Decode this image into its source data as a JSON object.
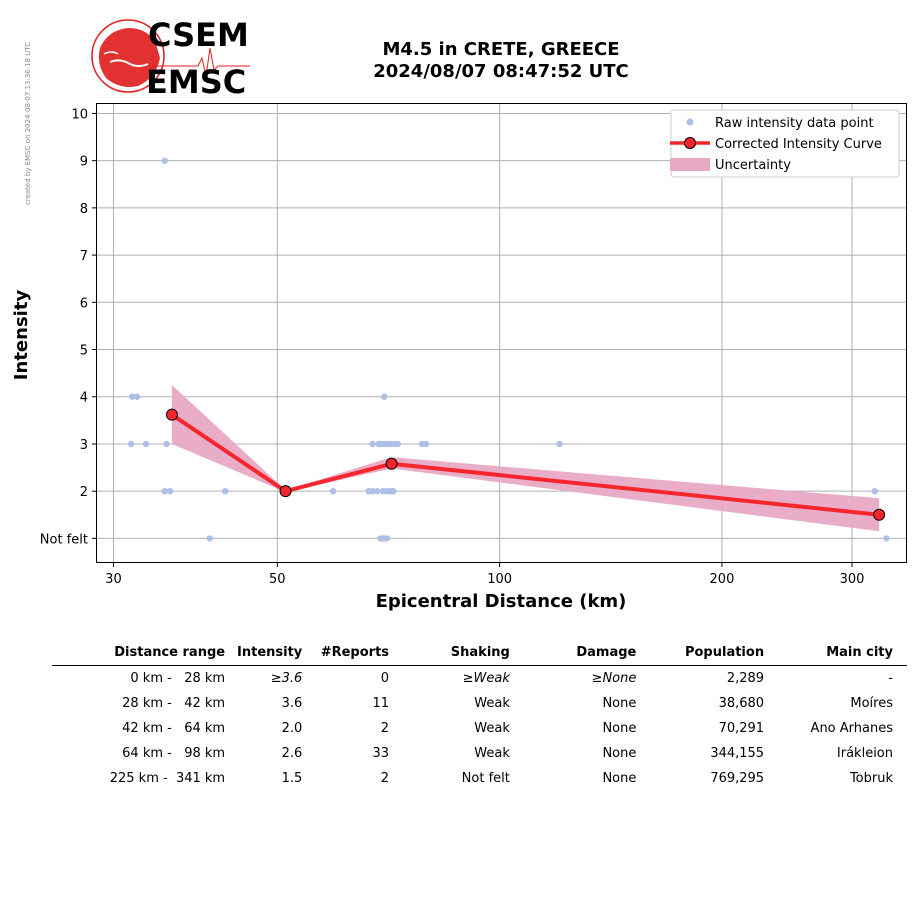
{
  "watermark": "created by EMSC on 2024-08-07 13:36:18 UTC",
  "logo": {
    "line1": "CSEM",
    "line2": "EMSC",
    "color": "#e02020"
  },
  "title": {
    "line1": "M4.5 in CRETE, GREECE",
    "line2": "2024/08/07 08:47:52 UTC"
  },
  "chart_data": {
    "type": "scatter",
    "xlabel": "Epicentral Distance (km)",
    "ylabel": "Intensity",
    "xscale": "log",
    "xlim": [
      28.5,
      355
    ],
    "ylim": [
      0.5,
      10.2
    ],
    "xticks": [
      30,
      50,
      100,
      200,
      300
    ],
    "yticks": [
      {
        "value": 1,
        "label": "Not felt"
      },
      {
        "value": 2,
        "label": "2"
      },
      {
        "value": 3,
        "label": "3"
      },
      {
        "value": 4,
        "label": "4"
      },
      {
        "value": 5,
        "label": "5"
      },
      {
        "value": 6,
        "label": "6"
      },
      {
        "value": 7,
        "label": "7"
      },
      {
        "value": 8,
        "label": "8"
      },
      {
        "value": 9,
        "label": "9"
      },
      {
        "value": 10,
        "label": "10"
      }
    ],
    "grid": true,
    "legend_position": "top-right",
    "legend": [
      "Raw intensity data point",
      "Corrected Intensity Curve",
      "Uncertainty"
    ],
    "colors": {
      "raw": "#aebfe8",
      "curve": "#f5262e",
      "band": "#e8a9c4",
      "marker": "#f5262e"
    },
    "raw_points": [
      {
        "x": 35.2,
        "y": 9
      },
      {
        "x": 31.8,
        "y": 4
      },
      {
        "x": 32.3,
        "y": 4
      },
      {
        "x": 31.7,
        "y": 3
      },
      {
        "x": 33.2,
        "y": 3
      },
      {
        "x": 35.4,
        "y": 3
      },
      {
        "x": 35.2,
        "y": 2
      },
      {
        "x": 35.8,
        "y": 2
      },
      {
        "x": 42.5,
        "y": 2
      },
      {
        "x": 40.5,
        "y": 1
      },
      {
        "x": 59.5,
        "y": 2
      },
      {
        "x": 66.5,
        "y": 2
      },
      {
        "x": 67.3,
        "y": 2
      },
      {
        "x": 68.3,
        "y": 2
      },
      {
        "x": 69.5,
        "y": 2
      },
      {
        "x": 70.2,
        "y": 2
      },
      {
        "x": 70.8,
        "y": 2
      },
      {
        "x": 71.3,
        "y": 2
      },
      {
        "x": 71.8,
        "y": 2
      },
      {
        "x": 67.3,
        "y": 3
      },
      {
        "x": 68.6,
        "y": 3
      },
      {
        "x": 69.2,
        "y": 3
      },
      {
        "x": 69.9,
        "y": 3
      },
      {
        "x": 70.5,
        "y": 3
      },
      {
        "x": 71.2,
        "y": 3
      },
      {
        "x": 72.0,
        "y": 3
      },
      {
        "x": 72.8,
        "y": 3
      },
      {
        "x": 69.8,
        "y": 4
      },
      {
        "x": 69.0,
        "y": 1
      },
      {
        "x": 69.7,
        "y": 1
      },
      {
        "x": 70.4,
        "y": 1
      },
      {
        "x": 78.5,
        "y": 3
      },
      {
        "x": 79.5,
        "y": 3
      },
      {
        "x": 120.5,
        "y": 3
      },
      {
        "x": 322,
        "y": 2
      },
      {
        "x": 334,
        "y": 1
      }
    ],
    "curve": [
      {
        "x": 36.0,
        "y": 3.62
      },
      {
        "x": 51.3,
        "y": 2.0
      },
      {
        "x": 71.4,
        "y": 2.58
      },
      {
        "x": 326.5,
        "y": 1.5
      }
    ],
    "uncertainty": [
      {
        "x": 36.0,
        "lower": 3.0,
        "upper": 4.25
      },
      {
        "x": 51.3,
        "lower": 1.98,
        "upper": 2.02
      },
      {
        "x": 71.4,
        "lower": 2.48,
        "upper": 2.72
      },
      {
        "x": 326.5,
        "lower": 1.15,
        "upper": 1.85
      }
    ]
  },
  "table": {
    "headers": [
      "Distance range",
      "Intensity",
      "#Reports",
      "Shaking",
      "Damage",
      "Population",
      "Main city"
    ],
    "rows": [
      {
        "range": "0 km -   28 km",
        "intensity": "≥3.6",
        "reports": "0",
        "shaking": "≥Weak",
        "damage": "≥None",
        "population": "2,289",
        "city": "-",
        "italic": true
      },
      {
        "range": "28 km -   42 km",
        "intensity": "3.6",
        "reports": "11",
        "shaking": "Weak",
        "damage": "None",
        "population": "38,680",
        "city": "Moíres",
        "italic": false
      },
      {
        "range": "42 km -   64 km",
        "intensity": "2.0",
        "reports": "2",
        "shaking": "Weak",
        "damage": "None",
        "population": "70,291",
        "city": "Ano Arhanes",
        "italic": false
      },
      {
        "range": "64 km -   98 km",
        "intensity": "2.6",
        "reports": "33",
        "shaking": "Weak",
        "damage": "None",
        "population": "344,155",
        "city": "Irákleion",
        "italic": false
      },
      {
        "range": "225 km -  341 km",
        "intensity": "1.5",
        "reports": "2",
        "shaking": "Not felt",
        "damage": "None",
        "population": "769,295",
        "city": "Tobruk",
        "italic": false
      }
    ]
  }
}
